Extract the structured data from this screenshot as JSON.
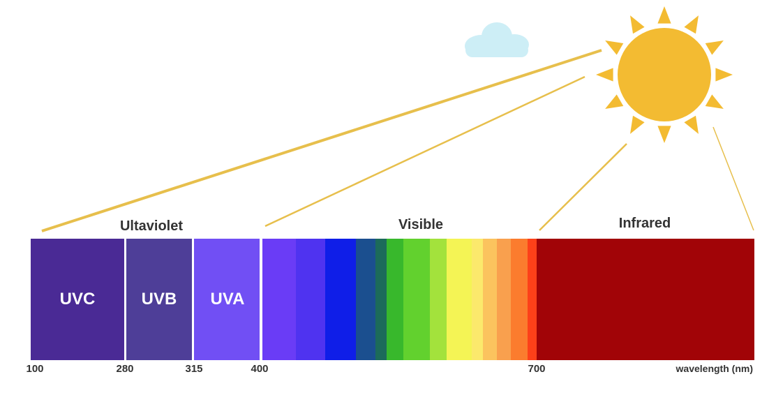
{
  "regions": {
    "ultraviolet": "Ultaviolet",
    "visible": "Visible",
    "infrared": "Infrared"
  },
  "bands": {
    "uvc": "UVC",
    "uvb": "UVB",
    "uva": "UVA"
  },
  "ticks": [
    "100",
    "280",
    "315",
    "400",
    "700"
  ],
  "axis_unit": "wavelength (nm)",
  "colors": {
    "uvc": "#4a2a95",
    "uvb": "#4e3e98",
    "uva": "#714ff4",
    "infrared": "#a10407",
    "sun": "#f3bb32",
    "ray": "#e7bf4c",
    "cloud": "#cdeef6",
    "visible_stripes": [
      "#6a3cf6",
      "#4f33f0",
      "#0f1ee8",
      "#1b4f8f",
      "#1c6b5a",
      "#38b82c",
      "#62d12e",
      "#a3e23c",
      "#f4f455",
      "#fbe96c",
      "#fbc35e",
      "#f9a04e",
      "#fb7c2e",
      "#fd4019",
      "#e30c0b"
    ]
  },
  "icons": {
    "sun": "sun-icon",
    "cloud": "cloud-icon"
  }
}
